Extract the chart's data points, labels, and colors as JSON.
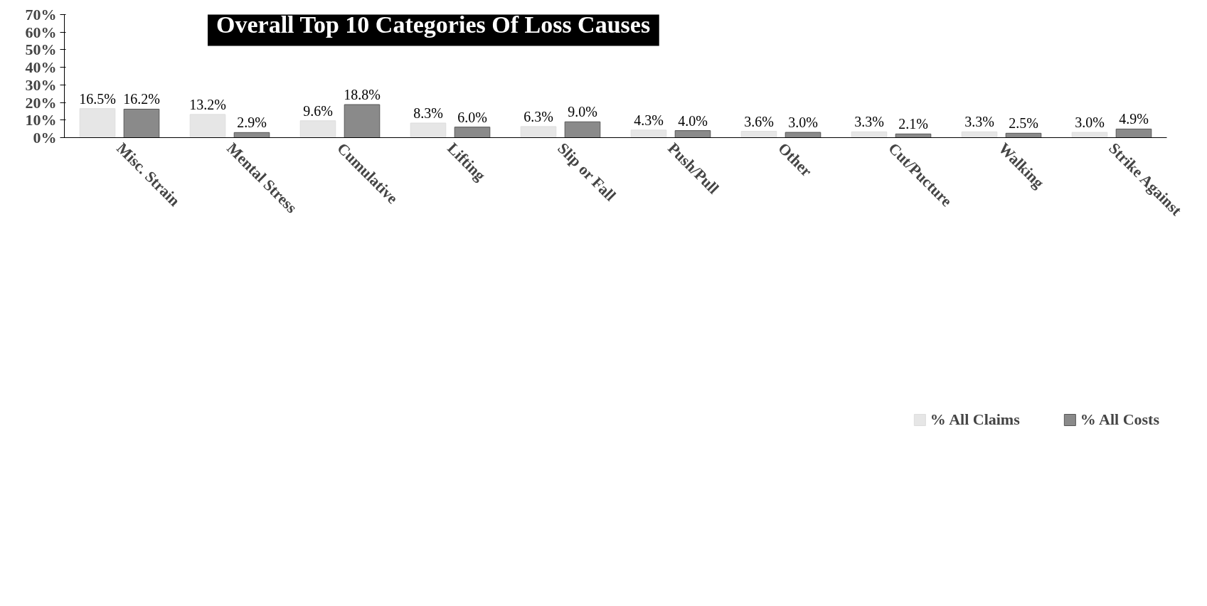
{
  "chart_data": {
    "type": "bar",
    "title": "Overall Top 10 Categories Of Loss Causes",
    "categories": [
      "Misc. Strain",
      "Mental Stress",
      "Cumulative",
      "Lifting",
      "Slip or Fall",
      "Push/Pull",
      "Other",
      "Cut/Pucture",
      "Walking",
      "Strike Against"
    ],
    "series": [
      {
        "name": "% All Claims",
        "color": "#e6e6e6",
        "values": [
          16.5,
          13.2,
          9.6,
          8.3,
          6.3,
          4.3,
          3.6,
          3.3,
          3.3,
          3.0
        ],
        "value_labels": [
          "16.5%",
          "13.2%",
          "9.6%",
          "8.3%",
          "6.3%",
          "4.3%",
          "3.6%",
          "3.3%",
          "3.3%",
          "3.0%"
        ]
      },
      {
        "name": "% All Costs",
        "color": "#8a8a8a",
        "values": [
          16.2,
          2.9,
          18.8,
          6.0,
          9.0,
          4.0,
          3.0,
          2.1,
          2.5,
          4.9
        ],
        "value_labels": [
          "16.2%",
          "2.9%",
          "18.8%",
          "6.0%",
          "9.0%",
          "4.0%",
          "3.0%",
          "2.1%",
          "2.5%",
          "4.9%"
        ]
      }
    ],
    "ylim": [
      0,
      70
    ],
    "yticks": [
      {
        "value": 0,
        "label": "0%"
      },
      {
        "value": 10,
        "label": "10%"
      },
      {
        "value": 20,
        "label": "20%"
      },
      {
        "value": 30,
        "label": "30%"
      },
      {
        "value": 40,
        "label": "40%"
      },
      {
        "value": 50,
        "label": "50%"
      },
      {
        "value": 60,
        "label": "60%"
      },
      {
        "value": 70,
        "label": "70%"
      }
    ],
    "grid": false,
    "legend": "bottom"
  }
}
